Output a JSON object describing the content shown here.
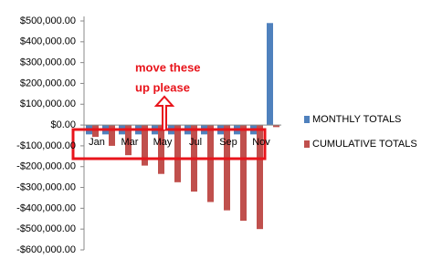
{
  "chart_data": {
    "type": "bar",
    "categories": [
      "Jan",
      null,
      "Mar",
      null,
      "May",
      null,
      "Jul",
      null,
      "Sep",
      null,
      "Nov",
      null
    ],
    "series": [
      {
        "name": "MONTHLY TOTALS",
        "color": "#4f81bd",
        "values": [
          -45000,
          -45000,
          -45000,
          -45000,
          -45000,
          -45000,
          -45000,
          -45000,
          -45000,
          -45000,
          -45000,
          490000
        ]
      },
      {
        "name": "CUMULATIVE TOTALS",
        "color": "#c0504d",
        "values": [
          -57000,
          -100000,
          -145000,
          -195000,
          -235000,
          -275000,
          -320000,
          -370000,
          -410000,
          -460000,
          -500000,
          -10000
        ]
      }
    ],
    "ylim": [
      -600000,
      500000
    ],
    "yticks": [
      {
        "value": -600000,
        "label": "-$600,000.00"
      },
      {
        "value": -500000,
        "label": "-$500,000.00"
      },
      {
        "value": -400000,
        "label": "-$400,000.00"
      },
      {
        "value": -300000,
        "label": "-$300,000.00"
      },
      {
        "value": -200000,
        "label": "-$200,000.00"
      },
      {
        "value": -100000,
        "label": "-$100,000.00"
      },
      {
        "value": 0,
        "label": "$0.00"
      },
      {
        "value": 100000,
        "label": "$100,000.00"
      },
      {
        "value": 200000,
        "label": "$200,000.00"
      },
      {
        "value": 300000,
        "label": "$300,000.00"
      },
      {
        "value": 400000,
        "label": "$400,000.00"
      },
      {
        "value": 500000,
        "label": "$500,000.00"
      }
    ],
    "grid": false,
    "legend": "right",
    "annotation": [
      "move these",
      "up please"
    ]
  }
}
